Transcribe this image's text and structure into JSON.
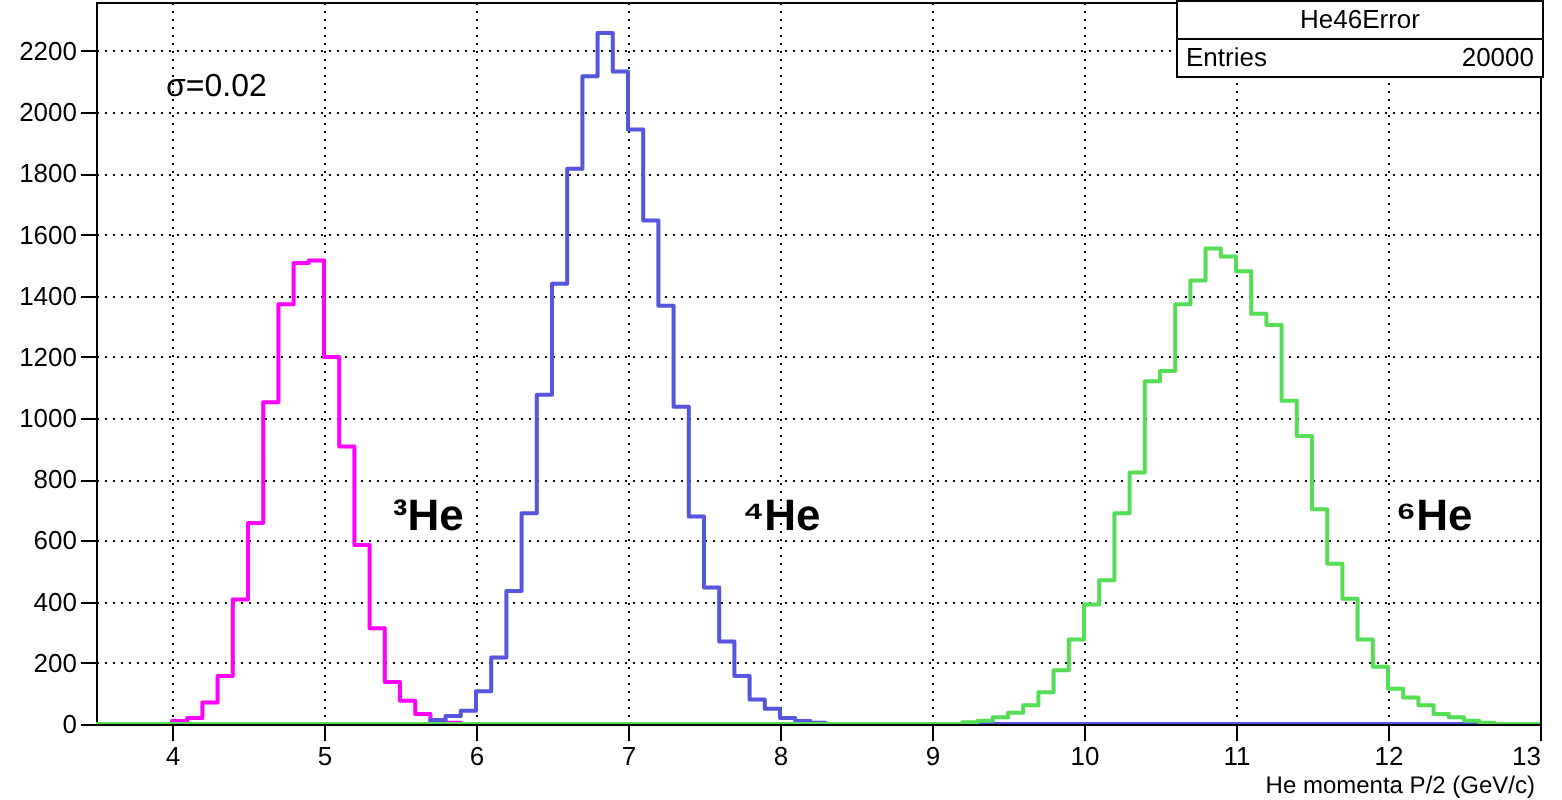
{
  "chart_data": {
    "type": "histogram",
    "xlabel": "He momenta P/2 (GeV/c)",
    "bins": [
      3.5,
      3.6,
      3.7,
      3.8,
      3.9,
      4.0,
      4.1,
      4.2,
      4.3,
      4.4,
      4.5,
      4.6,
      4.7,
      4.8,
      4.9,
      5.0,
      5.1,
      5.2,
      5.3,
      5.4,
      5.5,
      5.6,
      5.7,
      5.8,
      5.9,
      6.0,
      6.1,
      6.2,
      6.3,
      6.4,
      6.5,
      6.6,
      6.7,
      6.8,
      6.9,
      7.0,
      7.1,
      7.2,
      7.3,
      7.4,
      7.5,
      7.6,
      7.7,
      7.8,
      7.9,
      8.0,
      8.1,
      8.2,
      8.3,
      8.4,
      8.5,
      8.6,
      8.7,
      8.8,
      8.9,
      9.0,
      9.1,
      9.2,
      9.3,
      9.4,
      9.5,
      9.6,
      9.7,
      9.8,
      9.9,
      10.0,
      10.1,
      10.2,
      10.3,
      10.4,
      10.5,
      10.6,
      10.7,
      10.8,
      10.9,
      11.0,
      11.1,
      11.2,
      11.3,
      11.4,
      11.5,
      11.6,
      11.7,
      11.8,
      11.9,
      12.0,
      12.1,
      12.2,
      12.3,
      12.4,
      12.5,
      12.6,
      12.7,
      12.8,
      12.9,
      13.0
    ],
    "series": [
      {
        "name": "³He",
        "color": "#ff00ff",
        "values": [
          0,
          0,
          0,
          0,
          0,
          10,
          20,
          70,
          157,
          407,
          657,
          1052,
          1372,
          1507,
          1515,
          1200,
          907,
          585,
          313,
          137,
          76,
          33,
          11,
          4,
          0,
          0,
          0,
          0,
          0,
          0,
          0,
          0,
          0,
          0,
          0,
          0,
          0,
          0,
          0,
          0,
          0,
          0,
          0,
          0,
          0,
          0,
          0,
          0,
          0,
          0,
          0,
          0,
          0,
          0,
          0,
          0,
          0,
          0,
          0,
          0,
          0,
          0,
          0,
          0,
          0,
          0,
          0,
          0,
          0,
          0,
          0,
          0,
          0,
          0,
          0,
          0,
          0,
          0,
          0,
          0,
          0,
          0,
          0,
          0,
          0,
          0,
          0,
          0,
          0,
          0,
          0,
          0,
          0,
          0,
          0
        ]
      },
      {
        "name": "⁴He",
        "color": "#5555dd",
        "values": [
          0,
          0,
          0,
          0,
          0,
          0,
          0,
          0,
          0,
          0,
          0,
          0,
          0,
          0,
          0,
          0,
          0,
          0,
          0,
          0,
          0,
          0,
          13,
          26,
          43,
          107,
          217,
          435,
          689,
          1076,
          1439,
          1815,
          2117,
          2259,
          2133,
          1943,
          1646,
          1367,
          1037,
          678,
          446,
          270,
          157,
          80,
          50,
          20,
          10,
          4,
          0,
          0,
          0,
          0,
          0,
          0,
          0,
          0,
          0,
          0,
          0,
          0,
          0,
          0,
          0,
          0,
          0,
          0,
          0,
          0,
          0,
          0,
          0,
          0,
          0,
          0,
          0,
          0,
          0,
          0,
          0,
          0,
          0,
          0,
          0,
          0,
          0,
          0,
          0,
          0,
          0,
          0,
          0,
          0,
          0,
          0,
          0
        ]
      },
      {
        "name": "⁶He",
        "color": "#55dd55",
        "values": [
          0,
          0,
          0,
          0,
          0,
          0,
          0,
          0,
          0,
          0,
          0,
          0,
          0,
          0,
          0,
          0,
          0,
          0,
          0,
          0,
          0,
          0,
          0,
          0,
          0,
          0,
          0,
          0,
          0,
          0,
          0,
          0,
          0,
          0,
          0,
          0,
          0,
          0,
          0,
          0,
          0,
          0,
          0,
          0,
          0,
          0,
          0,
          0,
          0,
          0,
          0,
          0,
          0,
          0,
          0,
          0,
          0,
          6,
          11,
          22,
          37,
          61,
          104,
          176,
          276,
          391,
          470,
          689,
          822,
          1120,
          1154,
          1372,
          1450,
          1554,
          1528,
          1480,
          1341,
          1304,
          1057,
          941,
          702,
          524,
          409,
          276,
          187,
          115,
          87,
          61,
          33,
          22,
          11,
          4,
          0,
          0,
          0
        ]
      }
    ],
    "xlim": [
      3.5,
      13
    ],
    "xticks": [
      4,
      5,
      6,
      7,
      8,
      9,
      10,
      11,
      12,
      13
    ],
    "ylim": [
      0,
      2360
    ],
    "yticks": [
      0,
      200,
      400,
      600,
      800,
      1000,
      1200,
      1400,
      1600,
      1800,
      2000,
      2200
    ],
    "grid": true,
    "annotations": [
      "σ=0.02",
      "He46Error",
      "Entries",
      "20000"
    ]
  }
}
